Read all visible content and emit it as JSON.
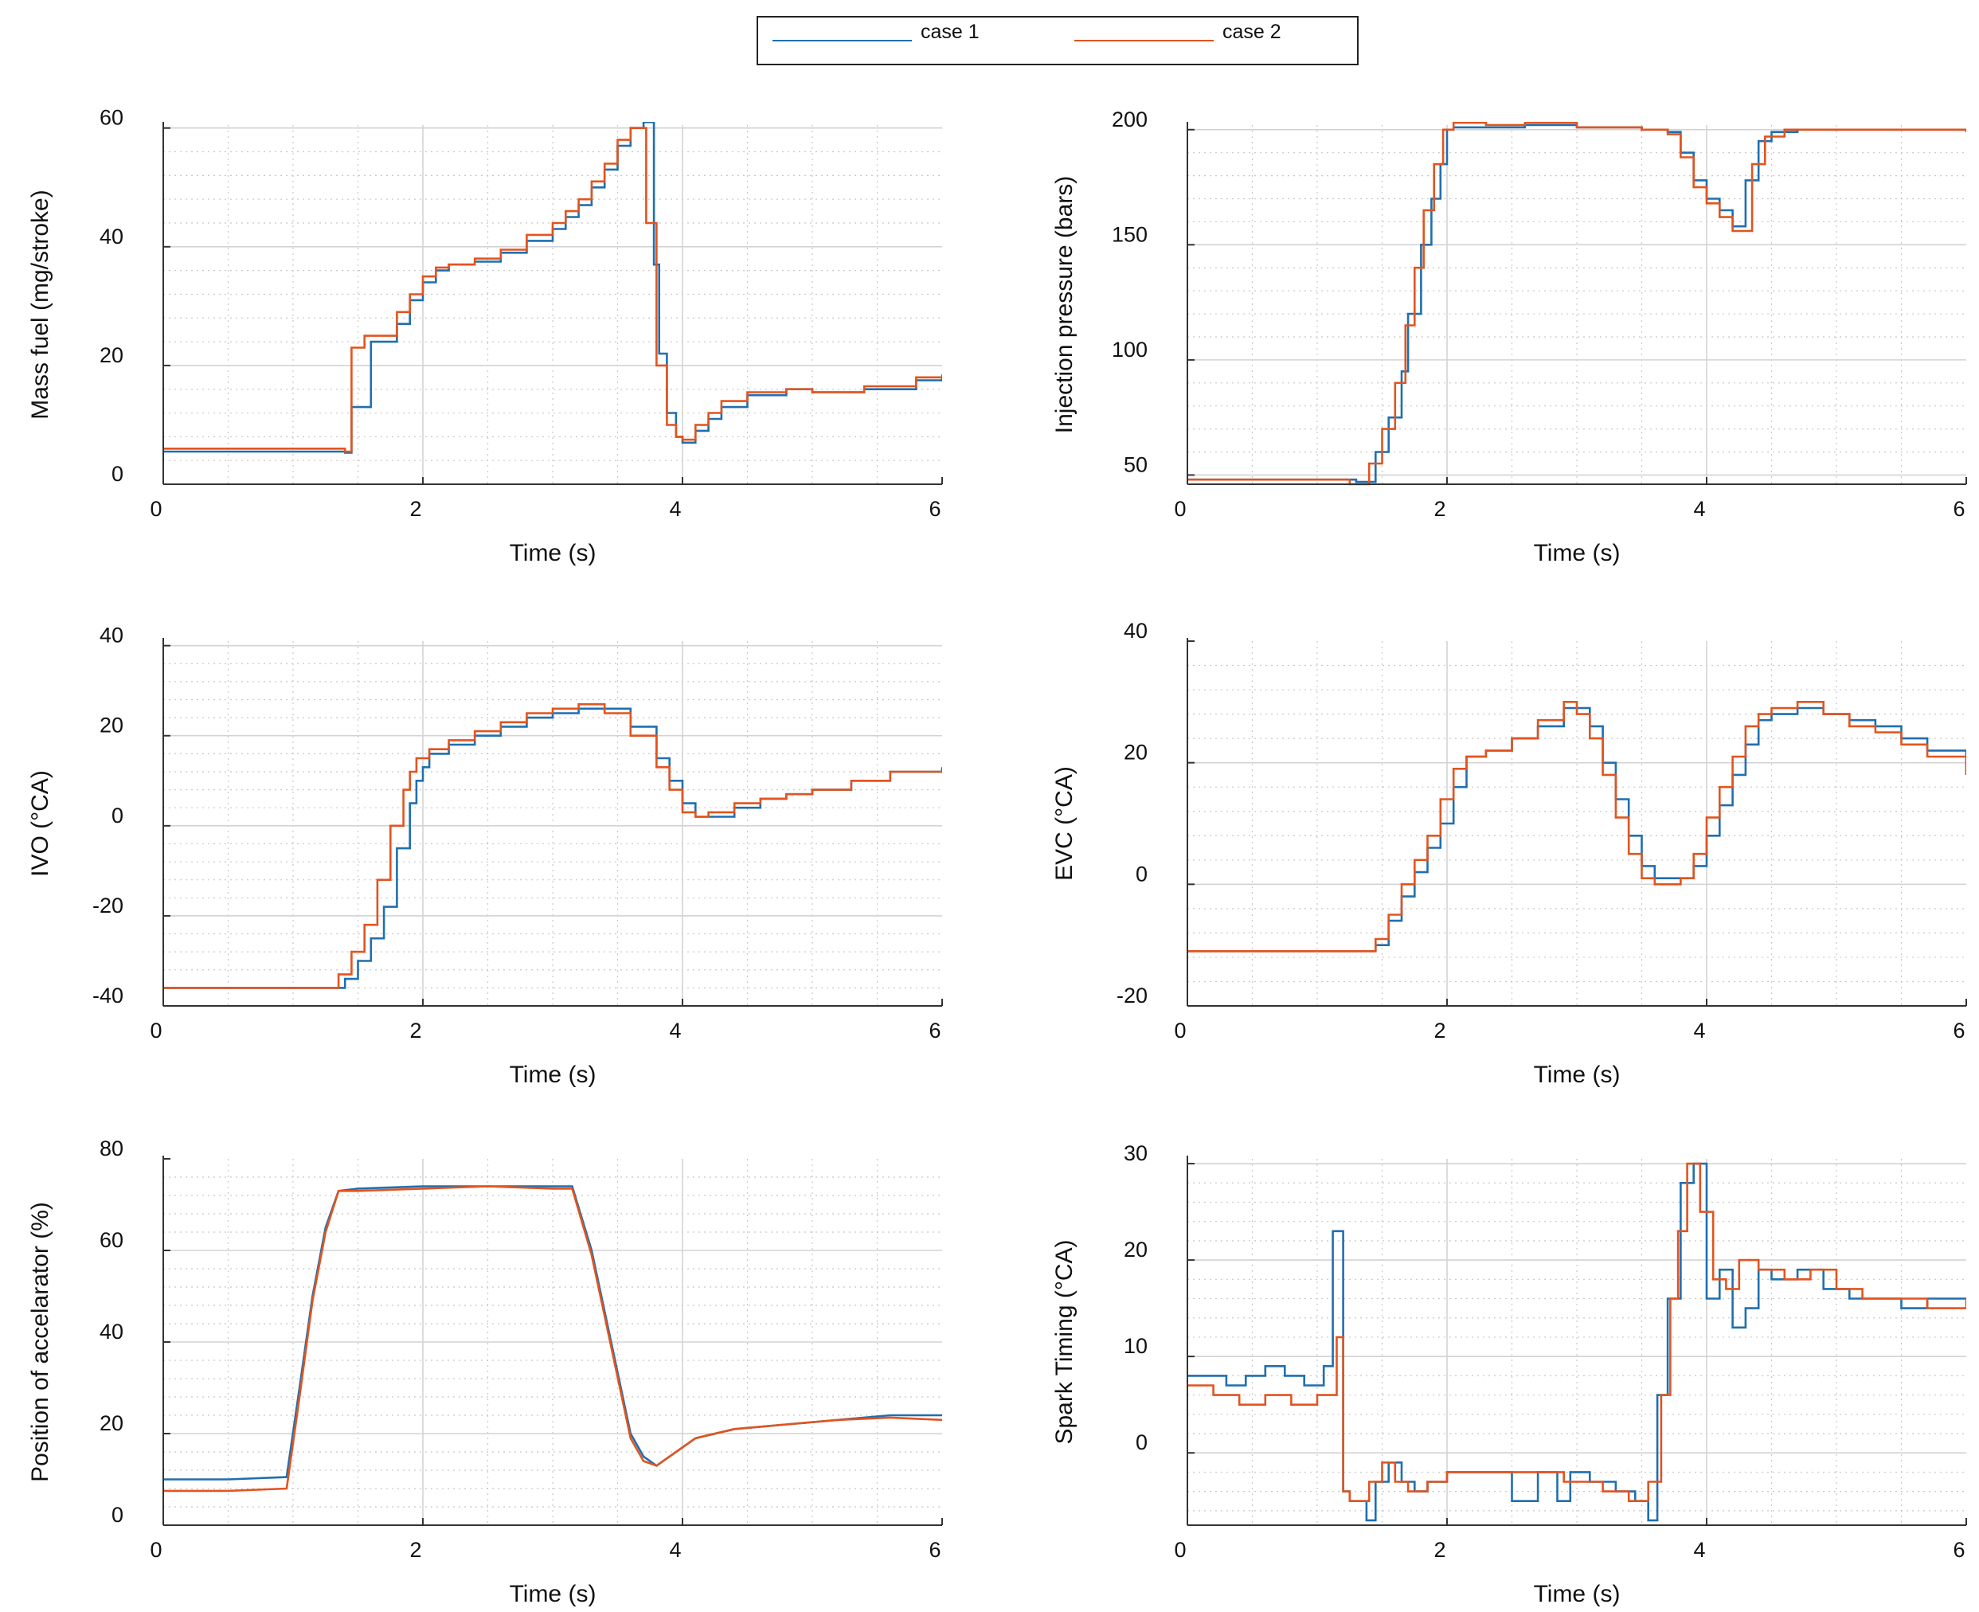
{
  "legend": {
    "series": [
      {
        "name": "case 1",
        "color": "#1f6fb0"
      },
      {
        "name": "case 2",
        "color": "#e2541f"
      }
    ]
  },
  "colors": {
    "case1": "#1f6fb0",
    "case2": "#e2541f",
    "grid_major": "#d3d3d3",
    "grid_minor": "#c8c8c8",
    "axis": "#333333"
  },
  "chart_data": [
    {
      "type": "line",
      "xlabel": "Time (s)",
      "ylabel": "Mass fuel (mg/stroke)",
      "xlim": [
        0,
        6
      ],
      "ylim": [
        0,
        60.5
      ],
      "xticks": [
        0,
        2,
        4,
        6
      ],
      "xtick_labels": [
        "0",
        "2",
        "4",
        "6"
      ],
      "yticks": [
        0,
        20,
        40,
        60
      ],
      "ytick_labels": [
        "0",
        "20",
        "40",
        "60"
      ],
      "step": true,
      "series": [
        {
          "name": "case 1",
          "x": [
            0,
            1.4,
            1.45,
            1.6,
            1.8,
            1.9,
            2.0,
            2.1,
            2.2,
            2.4,
            2.6,
            2.8,
            3.0,
            3.1,
            3.2,
            3.3,
            3.4,
            3.5,
            3.6,
            3.7,
            3.78,
            3.82,
            3.88,
            3.95,
            4.0,
            4.1,
            4.2,
            4.3,
            4.5,
            4.8,
            5.0,
            5.4,
            5.8,
            6.0
          ],
          "y": [
            5.5,
            5.3,
            13,
            24,
            27,
            31,
            34,
            36,
            37,
            37.5,
            39,
            41,
            43,
            45,
            47,
            50,
            53,
            57,
            60,
            61,
            37,
            22,
            12,
            8,
            7,
            9,
            11,
            13,
            15,
            16,
            15.5,
            16,
            17.5,
            18
          ]
        },
        {
          "name": "case 2",
          "x": [
            0,
            1.4,
            1.45,
            1.55,
            1.8,
            1.9,
            2.0,
            2.1,
            2.2,
            2.4,
            2.6,
            2.8,
            3.0,
            3.1,
            3.2,
            3.3,
            3.4,
            3.5,
            3.6,
            3.72,
            3.8,
            3.88,
            3.95,
            4.0,
            4.1,
            4.2,
            4.3,
            4.5,
            4.8,
            5.0,
            5.4,
            5.8,
            6.0
          ],
          "y": [
            6,
            5.5,
            23,
            25,
            29,
            32,
            35,
            36.5,
            37,
            38,
            39.5,
            42,
            44,
            46,
            48,
            51,
            54,
            58,
            60,
            44,
            20,
            10,
            8,
            7.5,
            10,
            12,
            14,
            15.5,
            16,
            15.5,
            16.5,
            18,
            18.5
          ]
        }
      ]
    },
    {
      "type": "line",
      "xlabel": "Time (s)",
      "ylabel": "Injection pressure (bars)",
      "xlim": [
        0,
        6
      ],
      "ylim": [
        46,
        202
      ],
      "xticks": [
        0,
        2,
        4,
        6
      ],
      "xtick_labels": [
        "0",
        "2",
        "4",
        "6"
      ],
      "yticks": [
        50,
        100,
        150,
        200
      ],
      "ytick_labels": [
        "50",
        "100",
        "150",
        "200"
      ],
      "step": true,
      "series": [
        {
          "name": "case 1",
          "x": [
            0,
            1.3,
            1.45,
            1.55,
            1.65,
            1.7,
            1.8,
            1.88,
            1.95,
            2.0,
            2.05,
            2.3,
            2.6,
            3.0,
            3.5,
            3.7,
            3.8,
            3.9,
            4.0,
            4.1,
            4.2,
            4.3,
            4.4,
            4.5,
            4.7,
            5.0,
            5.5,
            6.0
          ],
          "y": [
            48,
            47,
            60,
            75,
            95,
            120,
            150,
            170,
            185,
            200,
            201,
            201,
            202,
            201,
            200,
            199,
            190,
            178,
            170,
            165,
            158,
            178,
            195,
            199,
            200,
            200,
            200,
            199
          ]
        },
        {
          "name": "case 2",
          "x": [
            0,
            1.25,
            1.4,
            1.5,
            1.6,
            1.68,
            1.75,
            1.82,
            1.9,
            1.97,
            2.05,
            2.3,
            2.6,
            3.0,
            3.5,
            3.7,
            3.8,
            3.9,
            4.0,
            4.1,
            4.2,
            4.35,
            4.45,
            4.6,
            5.0,
            5.5,
            6.0
          ],
          "y": [
            48,
            46,
            55,
            70,
            90,
            115,
            140,
            165,
            185,
            200,
            203,
            202,
            203,
            201,
            200,
            198,
            188,
            175,
            168,
            162,
            156,
            185,
            197,
            200,
            200,
            200,
            199
          ]
        }
      ]
    },
    {
      "type": "line",
      "xlabel": "Time (s)",
      "ylabel": "IVO (°CA)",
      "xlim": [
        0,
        6
      ],
      "ylim": [
        -40,
        41
      ],
      "xticks": [
        0,
        2,
        4,
        6
      ],
      "xtick_labels": [
        "0",
        "2",
        "4",
        "6"
      ],
      "yticks": [
        -40,
        -20,
        0,
        20,
        40
      ],
      "ytick_labels": [
        "-40",
        "-20",
        "0",
        "20",
        "40"
      ],
      "step": true,
      "series": [
        {
          "name": "case 1",
          "x": [
            0,
            1.0,
            1.4,
            1.5,
            1.6,
            1.7,
            1.8,
            1.9,
            1.95,
            2.0,
            2.05,
            2.2,
            2.4,
            2.6,
            2.8,
            3.0,
            3.2,
            3.4,
            3.6,
            3.8,
            3.9,
            4.0,
            4.1,
            4.2,
            4.4,
            4.6,
            4.8,
            5.0,
            5.3,
            5.6,
            6.0
          ],
          "y": [
            -36,
            -36,
            -34,
            -30,
            -25,
            -18,
            -5,
            5,
            10,
            13,
            16,
            18,
            20,
            22,
            24,
            25,
            26,
            26,
            22,
            15,
            10,
            5,
            2,
            2,
            4,
            6,
            7,
            8,
            10,
            12,
            13
          ]
        },
        {
          "name": "case 2",
          "x": [
            0,
            1.0,
            1.35,
            1.45,
            1.55,
            1.65,
            1.75,
            1.85,
            1.9,
            1.95,
            2.05,
            2.2,
            2.4,
            2.6,
            2.8,
            3.0,
            3.2,
            3.4,
            3.6,
            3.8,
            3.9,
            4.0,
            4.1,
            4.2,
            4.4,
            4.6,
            4.8,
            5.0,
            5.3,
            5.6,
            6.0
          ],
          "y": [
            -36,
            -36,
            -33,
            -28,
            -22,
            -12,
            0,
            8,
            12,
            15,
            17,
            19,
            21,
            23,
            25,
            26,
            27,
            25,
            20,
            13,
            8,
            3,
            2,
            3,
            5,
            6,
            7,
            8,
            10,
            12,
            12
          ]
        }
      ]
    },
    {
      "type": "line",
      "xlabel": "Time (s)",
      "ylabel": "EVC (°CA)",
      "xlim": [
        0,
        6
      ],
      "ylim": [
        -20,
        40
      ],
      "xticks": [
        0,
        2,
        4,
        6
      ],
      "xtick_labels": [
        "0",
        "2",
        "4",
        "6"
      ],
      "yticks": [
        -20,
        0,
        20,
        40
      ],
      "ytick_labels": [
        "-20",
        "0",
        "20",
        "40"
      ],
      "step": true,
      "series": [
        {
          "name": "case 1",
          "x": [
            0,
            1.0,
            1.45,
            1.55,
            1.65,
            1.75,
            1.85,
            1.95,
            2.05,
            2.15,
            2.3,
            2.5,
            2.7,
            2.9,
            3.0,
            3.1,
            3.2,
            3.3,
            3.4,
            3.5,
            3.6,
            3.8,
            3.9,
            4.0,
            4.1,
            4.2,
            4.3,
            4.4,
            4.5,
            4.7,
            4.9,
            5.1,
            5.3,
            5.5,
            5.7,
            6.0
          ],
          "y": [
            -11,
            -11,
            -10,
            -6,
            -2,
            2,
            6,
            10,
            16,
            21,
            22,
            24,
            26,
            29,
            29,
            26,
            20,
            14,
            8,
            3,
            1,
            1,
            3,
            8,
            13,
            18,
            23,
            27,
            28,
            29,
            28,
            27,
            26,
            24,
            22,
            18
          ]
        },
        {
          "name": "case 2",
          "x": [
            0,
            1.0,
            1.45,
            1.55,
            1.65,
            1.75,
            1.85,
            1.95,
            2.05,
            2.15,
            2.3,
            2.5,
            2.7,
            2.9,
            3.0,
            3.1,
            3.2,
            3.3,
            3.4,
            3.5,
            3.6,
            3.8,
            3.9,
            4.0,
            4.1,
            4.2,
            4.3,
            4.4,
            4.5,
            4.7,
            4.9,
            5.1,
            5.3,
            5.5,
            5.7,
            6.0
          ],
          "y": [
            -11,
            -11,
            -9,
            -5,
            0,
            4,
            8,
            14,
            19,
            21,
            22,
            24,
            27,
            30,
            28,
            24,
            18,
            11,
            5,
            1,
            0,
            1,
            5,
            11,
            16,
            21,
            26,
            28,
            29,
            30,
            28,
            26,
            25,
            23,
            21,
            18
          ]
        }
      ]
    },
    {
      "type": "line",
      "xlabel": "Time (s)",
      "ylabel": "Position of accelarator (%)",
      "xlim": [
        0,
        6
      ],
      "ylim": [
        0,
        80
      ],
      "xticks": [
        0,
        2,
        4,
        6
      ],
      "xtick_labels": [
        "0",
        "2",
        "4",
        "6"
      ],
      "yticks": [
        0,
        20,
        40,
        60,
        80
      ],
      "ytick_labels": [
        "0",
        "20",
        "40",
        "60",
        "80"
      ],
      "step": false,
      "series": [
        {
          "name": "case 1",
          "x": [
            0,
            0.5,
            0.95,
            1.05,
            1.15,
            1.25,
            1.35,
            1.5,
            2.0,
            2.5,
            3.0,
            3.15,
            3.3,
            3.45,
            3.6,
            3.7,
            3.8,
            3.9,
            4.1,
            4.4,
            4.8,
            5.2,
            5.6,
            6.0
          ],
          "y": [
            10,
            10,
            10.5,
            30,
            50,
            65,
            73,
            73.5,
            74,
            74,
            74,
            74,
            60,
            40,
            20,
            15,
            13,
            15,
            19,
            21,
            22,
            23,
            24,
            24
          ]
        },
        {
          "name": "case 2",
          "x": [
            0,
            0.5,
            0.95,
            1.05,
            1.15,
            1.25,
            1.35,
            1.5,
            2.0,
            2.5,
            3.0,
            3.15,
            3.3,
            3.45,
            3.6,
            3.7,
            3.8,
            3.9,
            4.1,
            4.4,
            4.8,
            5.2,
            5.6,
            6.0
          ],
          "y": [
            7.5,
            7.5,
            8,
            28,
            49,
            64,
            73,
            73,
            73.5,
            74,
            73.5,
            73.5,
            59,
            39,
            19,
            14,
            13,
            15,
            19,
            21,
            22,
            23,
            23.5,
            23
          ]
        }
      ]
    },
    {
      "type": "line",
      "xlabel": "Time (s)",
      "ylabel": "Spark Timing (°CA)",
      "xlim": [
        0,
        6
      ],
      "ylim": [
        -7.5,
        30.5
      ],
      "xticks": [
        0,
        2,
        4,
        6
      ],
      "xtick_labels": [
        "0",
        "2",
        "4",
        "6"
      ],
      "yticks": [
        0,
        10,
        20,
        30
      ],
      "ytick_labels": [
        "0",
        "10",
        "20",
        "30"
      ],
      "step": true,
      "series": [
        {
          "name": "case 1",
          "x": [
            0,
            0.3,
            0.45,
            0.6,
            0.75,
            0.9,
            1.05,
            1.12,
            1.2,
            1.25,
            1.38,
            1.45,
            1.55,
            1.65,
            1.75,
            1.85,
            2.0,
            2.2,
            2.5,
            2.7,
            2.85,
            2.95,
            3.1,
            3.3,
            3.45,
            3.55,
            3.62,
            3.7,
            3.8,
            3.9,
            4.0,
            4.1,
            4.2,
            4.3,
            4.4,
            4.5,
            4.7,
            4.9,
            5.1,
            5.3,
            5.5,
            5.7,
            6.0
          ],
          "y": [
            8,
            7,
            8,
            9,
            8,
            7,
            9,
            23,
            -4,
            -5,
            -7,
            -3,
            -1,
            -3,
            -4,
            -3,
            -2,
            -2,
            -5,
            -2,
            -5,
            -2,
            -3,
            -4,
            -5,
            -7,
            6,
            16,
            28,
            30,
            16,
            19,
            13,
            15,
            19,
            18,
            19,
            17,
            16,
            16,
            15,
            16,
            16
          ]
        },
        {
          "name": "case 2",
          "x": [
            0,
            0.2,
            0.4,
            0.6,
            0.8,
            1.0,
            1.15,
            1.2,
            1.25,
            1.4,
            1.5,
            1.6,
            1.7,
            1.85,
            2.0,
            2.3,
            2.6,
            2.9,
            3.2,
            3.4,
            3.55,
            3.65,
            3.72,
            3.78,
            3.85,
            3.95,
            4.05,
            4.15,
            4.25,
            4.4,
            4.6,
            4.8,
            5.0,
            5.2,
            5.4,
            5.7,
            6.0
          ],
          "y": [
            7,
            6,
            5,
            6,
            5,
            6,
            12,
            -4,
            -5,
            -3,
            -1,
            -3,
            -4,
            -3,
            -2,
            -2,
            -2,
            -3,
            -4,
            -5,
            -3,
            6,
            16,
            23,
            30,
            25,
            18,
            17,
            20,
            19,
            18,
            19,
            17,
            16,
            16,
            15,
            16
          ]
        }
      ]
    }
  ]
}
